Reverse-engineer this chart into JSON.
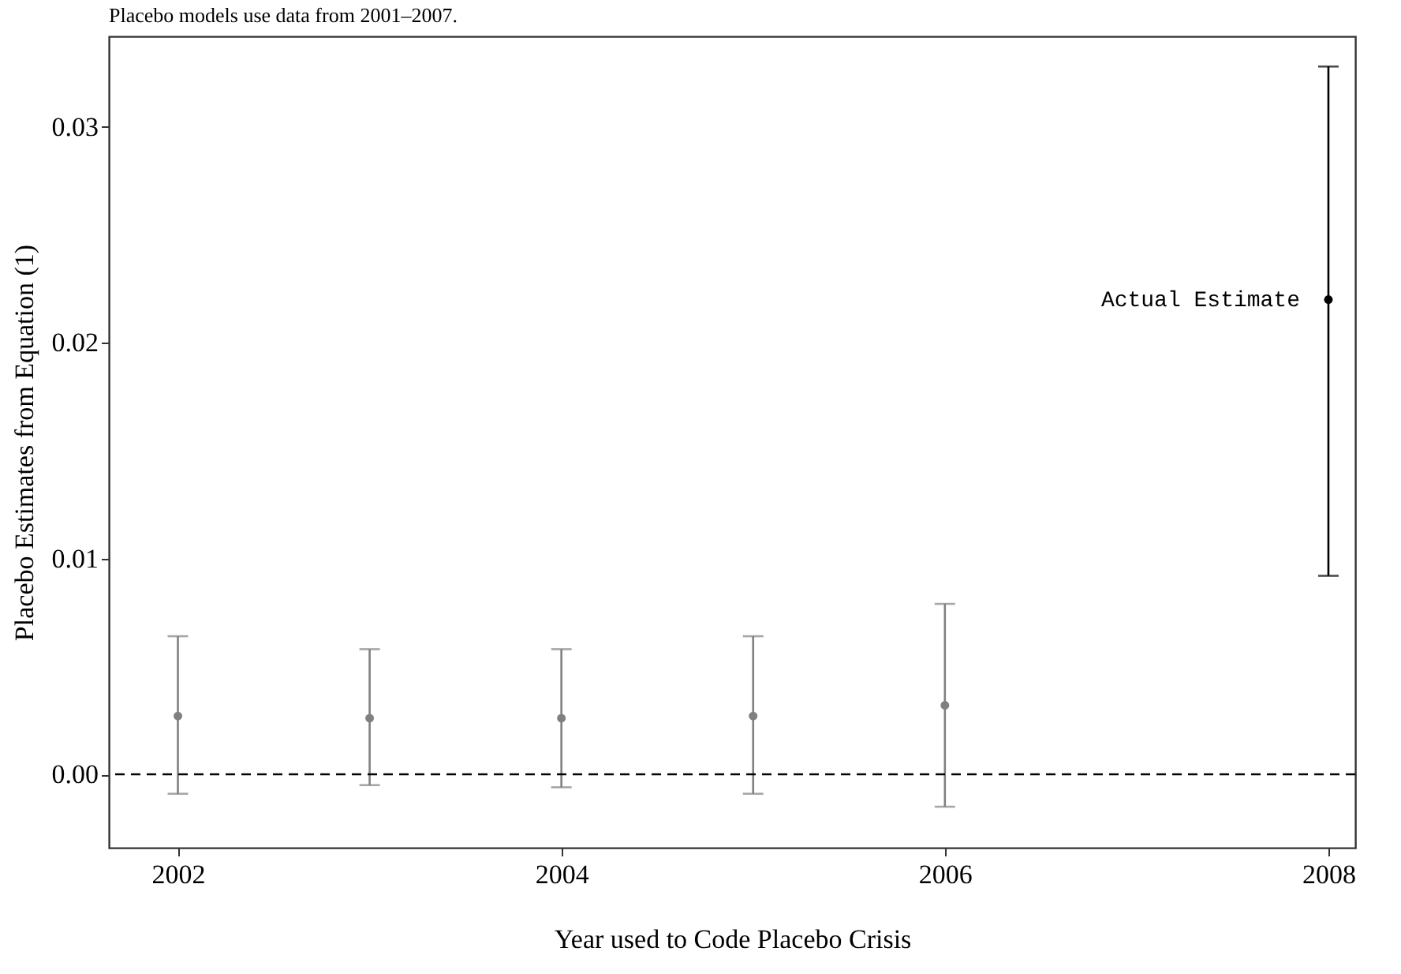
{
  "chart_data": {
    "type": "scatter",
    "title": "Placebo models use data from 2001–2007.",
    "xlabel": "Year used to Code Placebo Crisis",
    "ylabel": "Placebo Estimates from Equation (1)",
    "series": [
      {
        "color": "#808080",
        "x": [
          2002,
          2003,
          2004,
          2005,
          2006
        ],
        "values": [
          0.0027,
          0.0026,
          0.0026,
          0.0027,
          0.0032
        ],
        "errors": [
          [
            -0.0009,
            0.0064
          ],
          [
            -0.0005,
            0.0058
          ],
          [
            -0.0006,
            0.0058
          ],
          [
            -0.0009,
            0.0064
          ],
          [
            -0.0015,
            0.0079
          ]
        ]
      },
      {
        "name": "Actual Estimate",
        "color": "#000000",
        "x": [
          2008
        ],
        "values": [
          0.022
        ],
        "errors": [
          [
            0.0092,
            0.0328
          ]
        ]
      }
    ],
    "xlim": [
      2001.64,
      2008.14
    ],
    "xticks": [
      2002,
      2004,
      2006,
      2008
    ],
    "ylim": [
      -0.0034,
      0.0342
    ],
    "yticks": [
      {
        "value": 0,
        "label": "0.00"
      },
      0.01,
      0.02,
      0.03
    ],
    "ref_lines": [
      {
        "axis": "y",
        "value": 0,
        "line_style": "dashed",
        "color": "#000000"
      }
    ],
    "grid": false,
    "marker": "circle"
  }
}
